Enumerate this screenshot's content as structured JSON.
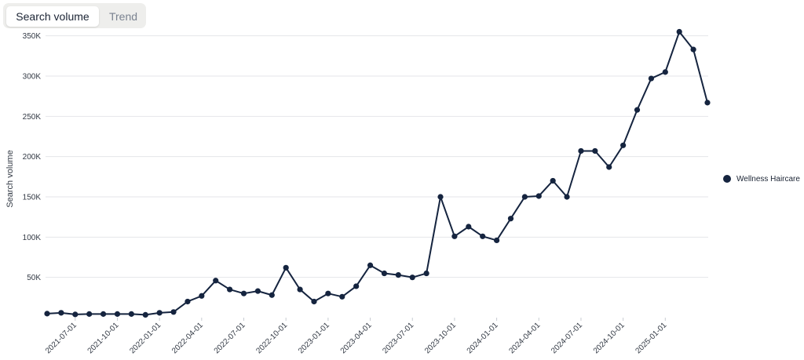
{
  "tabs": {
    "search_volume": "Search volume",
    "trend": "Trend"
  },
  "chart_data": {
    "type": "line",
    "ylabel": "Search volume",
    "ylim": [
      0,
      375000
    ],
    "y_ticks": [
      50000,
      100000,
      150000,
      200000,
      250000,
      300000,
      350000
    ],
    "y_tick_labels": [
      "50K",
      "100K",
      "150K",
      "200K",
      "250K",
      "300K",
      "350K"
    ],
    "x_tick_labels": [
      "2021-07-01",
      "2021-10-01",
      "2022-01-01",
      "2022-04-01",
      "2022-07-01",
      "2022-10-01",
      "2023-01-01",
      "2023-04-01",
      "2023-07-01",
      "2023-10-01",
      "2024-01-01",
      "2024-04-01",
      "2024-07-01",
      "2024-10-01",
      "2025-01-01"
    ],
    "grid": true,
    "legend_position": "right",
    "series": [
      {
        "name": "Wellness Haircare",
        "color": "#15243f",
        "x": [
          "2021-05-01",
          "2021-06-01",
          "2021-07-01",
          "2021-08-01",
          "2021-09-01",
          "2021-10-01",
          "2021-11-01",
          "2021-12-01",
          "2022-01-01",
          "2022-02-01",
          "2022-03-01",
          "2022-04-01",
          "2022-05-01",
          "2022-06-01",
          "2022-07-01",
          "2022-08-01",
          "2022-09-01",
          "2022-10-01",
          "2022-11-01",
          "2022-12-01",
          "2023-01-01",
          "2023-02-01",
          "2023-03-01",
          "2023-04-01",
          "2023-05-01",
          "2023-06-01",
          "2023-07-01",
          "2023-08-01",
          "2023-09-01",
          "2023-10-01",
          "2023-11-01",
          "2023-12-01",
          "2024-01-01",
          "2024-02-01",
          "2024-03-01",
          "2024-04-01",
          "2024-05-01",
          "2024-06-01",
          "2024-07-01",
          "2024-08-01",
          "2024-09-01",
          "2024-10-01",
          "2024-11-01",
          "2024-12-01",
          "2025-01-01",
          "2025-02-01",
          "2025-03-01",
          "2025-04-01"
        ],
        "values": [
          5000,
          6000,
          4000,
          4500,
          4500,
          4500,
          4500,
          3500,
          6000,
          7000,
          20000,
          27000,
          46000,
          35000,
          30000,
          33000,
          28000,
          62000,
          35000,
          20000,
          30000,
          26000,
          39000,
          65000,
          55000,
          53000,
          50000,
          55000,
          150000,
          101000,
          113000,
          101000,
          96000,
          123000,
          150000,
          151000,
          170000,
          150000,
          207000,
          207000,
          187000,
          214000,
          258000,
          297000,
          305000,
          355000,
          333000,
          267000
        ]
      }
    ]
  }
}
